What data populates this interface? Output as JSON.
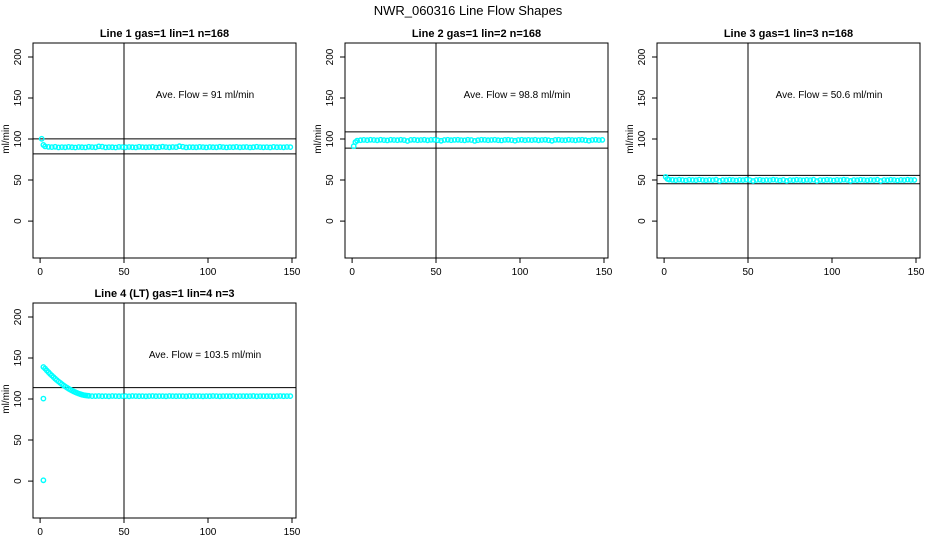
{
  "figure": {
    "title": "NWR_060316  Line Flow Shapes",
    "background_color": "#ffffff",
    "point_color": "#00ffff",
    "axis_color": "#000000"
  },
  "chart_data": [
    {
      "type": "scatter",
      "title": "Line 1 gas=1 lin=1 n=168",
      "annotation": "Ave. Flow =  91  ml/min",
      "ave_flow_ml_min": 91,
      "ylabel": "ml/min",
      "xlabel": "",
      "x_ticks": [
        0,
        50,
        100,
        150
      ],
      "y_ticks": [
        0,
        50,
        100,
        150,
        200
      ],
      "xlim": [
        -4.2,
        152.4
      ],
      "ylim": [
        -45,
        217
      ],
      "grid": false,
      "vline_x": 50,
      "hlines": [
        100.1,
        81.9
      ],
      "points": [
        [
          1,
          100.2
        ],
        [
          2,
          92.8
        ],
        [
          3,
          91
        ],
        [
          5,
          90.4
        ],
        [
          7,
          90.1
        ],
        [
          9,
          90.5
        ],
        [
          11,
          89.8
        ],
        [
          13,
          90.2
        ],
        [
          15,
          89.9
        ],
        [
          17,
          90.4
        ],
        [
          19,
          90
        ],
        [
          21,
          89.7
        ],
        [
          23,
          90.3
        ],
        [
          25,
          90
        ],
        [
          27,
          89.8
        ],
        [
          29,
          90.5
        ],
        [
          31,
          90.1
        ],
        [
          33,
          89.9
        ],
        [
          35,
          91
        ],
        [
          37,
          90.6
        ],
        [
          39,
          89.8
        ],
        [
          41,
          90.2
        ],
        [
          43,
          90
        ],
        [
          45,
          89.7
        ],
        [
          47,
          90.4
        ],
        [
          49,
          90.1
        ],
        [
          51,
          89.9
        ],
        [
          53,
          90.3
        ],
        [
          55,
          90
        ],
        [
          57,
          89.8
        ],
        [
          59,
          90.5
        ],
        [
          61,
          90.2
        ],
        [
          63,
          89.9
        ],
        [
          65,
          90.1
        ],
        [
          67,
          90.4
        ],
        [
          69,
          89.8
        ],
        [
          71,
          90
        ],
        [
          73,
          90.6
        ],
        [
          75,
          90.2
        ],
        [
          77,
          89.9
        ],
        [
          79,
          90.3
        ],
        [
          81,
          90
        ],
        [
          83,
          91.2
        ],
        [
          85,
          90.5
        ],
        [
          87,
          89.8
        ],
        [
          89,
          90.2
        ],
        [
          91,
          90
        ],
        [
          93,
          89.9
        ],
        [
          95,
          90.4
        ],
        [
          97,
          90.1
        ],
        [
          99,
          89.8
        ],
        [
          101,
          90.3
        ],
        [
          103,
          90
        ],
        [
          105,
          89.9
        ],
        [
          107,
          90.5
        ],
        [
          109,
          90.1
        ],
        [
          111,
          89.8
        ],
        [
          113,
          90.2
        ],
        [
          115,
          90
        ],
        [
          117,
          90.4
        ],
        [
          119,
          89.9
        ],
        [
          121,
          90.1
        ],
        [
          123,
          90.3
        ],
        [
          125,
          89.8
        ],
        [
          127,
          90
        ],
        [
          129,
          90.5
        ],
        [
          131,
          90.2
        ],
        [
          133,
          89.9
        ],
        [
          135,
          90.1
        ],
        [
          137,
          89.8
        ],
        [
          139,
          90.4
        ],
        [
          141,
          90
        ],
        [
          143,
          90.2
        ],
        [
          145,
          89.9
        ],
        [
          147,
          90.3
        ],
        [
          149,
          90.1
        ]
      ]
    },
    {
      "type": "scatter",
      "title": "Line 2 gas=1 lin=2 n=168",
      "annotation": "Ave. Flow =  98.8  ml/min",
      "ave_flow_ml_min": 98.8,
      "ylabel": "ml/min",
      "xlabel": "",
      "x_ticks": [
        0,
        50,
        100,
        150
      ],
      "y_ticks": [
        0,
        50,
        100,
        150,
        200
      ],
      "xlim": [
        -4.2,
        152.4
      ],
      "ylim": [
        -45,
        217
      ],
      "grid": false,
      "vline_x": 50,
      "hlines": [
        108.7,
        88.9
      ],
      "points": [
        [
          1,
          91.2
        ],
        [
          2,
          96.2
        ],
        [
          3,
          97.9
        ],
        [
          5,
          98.6
        ],
        [
          7,
          98.9
        ],
        [
          9,
          98.5
        ],
        [
          11,
          99.1
        ],
        [
          13,
          98.8
        ],
        [
          15,
          98.4
        ],
        [
          17,
          99
        ],
        [
          19,
          98.7
        ],
        [
          21,
          98.3
        ],
        [
          23,
          99.1
        ],
        [
          25,
          98.8
        ],
        [
          27,
          98.5
        ],
        [
          29,
          99
        ],
        [
          31,
          98.7
        ],
        [
          33,
          97.6
        ],
        [
          35,
          98.9
        ],
        [
          37,
          99.1
        ],
        [
          39,
          98.6
        ],
        [
          41,
          98.8
        ],
        [
          43,
          99
        ],
        [
          45,
          98.4
        ],
        [
          47,
          98.9
        ],
        [
          49,
          99.1
        ],
        [
          51,
          98.6
        ],
        [
          53,
          97.8
        ],
        [
          55,
          98.8
        ],
        [
          57,
          99
        ],
        [
          59,
          98.5
        ],
        [
          61,
          98.9
        ],
        [
          63,
          99.1
        ],
        [
          65,
          98.7
        ],
        [
          67,
          98.4
        ],
        [
          69,
          99
        ],
        [
          71,
          98.8
        ],
        [
          73,
          97.7
        ],
        [
          75,
          98.6
        ],
        [
          77,
          99.1
        ],
        [
          79,
          98.9
        ],
        [
          81,
          98.5
        ],
        [
          83,
          98.8
        ],
        [
          85,
          99
        ],
        [
          87,
          98.6
        ],
        [
          89,
          98.3
        ],
        [
          91,
          98.9
        ],
        [
          93,
          99.1
        ],
        [
          95,
          98.7
        ],
        [
          97,
          97.9
        ],
        [
          99,
          98.8
        ],
        [
          101,
          99
        ],
        [
          103,
          98.5
        ],
        [
          105,
          98.9
        ],
        [
          107,
          98.7
        ],
        [
          109,
          99.1
        ],
        [
          111,
          98.4
        ],
        [
          113,
          98.8
        ],
        [
          115,
          99
        ],
        [
          117,
          98.6
        ],
        [
          119,
          97.8
        ],
        [
          121,
          98.9
        ],
        [
          123,
          99.1
        ],
        [
          125,
          98.7
        ],
        [
          127,
          98.5
        ],
        [
          129,
          99
        ],
        [
          131,
          98.8
        ],
        [
          133,
          98.4
        ],
        [
          135,
          98.9
        ],
        [
          137,
          99.1
        ],
        [
          139,
          98.6
        ],
        [
          141,
          97.9
        ],
        [
          143,
          98.8
        ],
        [
          145,
          99
        ],
        [
          147,
          98.7
        ],
        [
          149,
          98.9
        ]
      ]
    },
    {
      "type": "scatter",
      "title": "Line 3 gas=1 lin=3 n=168",
      "annotation": "Ave. Flow =  50.6  ml/min",
      "ave_flow_ml_min": 50.6,
      "ylabel": "ml/min",
      "xlabel": "",
      "x_ticks": [
        0,
        50,
        100,
        150
      ],
      "y_ticks": [
        0,
        50,
        100,
        150,
        200
      ],
      "xlim": [
        -4.2,
        152.4
      ],
      "ylim": [
        -45,
        217
      ],
      "grid": false,
      "vline_x": 50,
      "hlines": [
        55.7,
        45.5
      ],
      "points": [
        [
          1,
          53.8
        ],
        [
          2,
          51.3
        ],
        [
          3,
          50.5
        ],
        [
          5,
          50.2
        ],
        [
          7,
          49.8
        ],
        [
          9,
          50.4
        ],
        [
          11,
          50
        ],
        [
          13,
          49.6
        ],
        [
          15,
          50.3
        ],
        [
          17,
          50.1
        ],
        [
          19,
          49.8
        ],
        [
          21,
          50.5
        ],
        [
          23,
          50
        ],
        [
          25,
          49.7
        ],
        [
          27,
          50.2
        ],
        [
          29,
          49.9
        ],
        [
          31,
          50.4
        ],
        [
          33,
          48.9
        ],
        [
          35,
          50.1
        ],
        [
          37,
          49.8
        ],
        [
          39,
          50.3
        ],
        [
          41,
          50
        ],
        [
          43,
          49.6
        ],
        [
          45,
          50.2
        ],
        [
          47,
          49.9
        ],
        [
          49,
          50.4
        ],
        [
          51,
          50.1
        ],
        [
          53,
          48.8
        ],
        [
          55,
          50
        ],
        [
          57,
          50.3
        ],
        [
          59,
          49.7
        ],
        [
          61,
          50.1
        ],
        [
          63,
          49.9
        ],
        [
          65,
          50.4
        ],
        [
          67,
          50
        ],
        [
          69,
          49.6
        ],
        [
          71,
          50.2
        ],
        [
          73,
          48.9
        ],
        [
          75,
          50.1
        ],
        [
          77,
          49.8
        ],
        [
          79,
          50.3
        ],
        [
          81,
          50
        ],
        [
          83,
          49.7
        ],
        [
          85,
          50.2
        ],
        [
          87,
          49.9
        ],
        [
          89,
          50.4
        ],
        [
          91,
          48.8
        ],
        [
          93,
          50.1
        ],
        [
          95,
          49.8
        ],
        [
          97,
          50.3
        ],
        [
          99,
          50
        ],
        [
          101,
          49.6
        ],
        [
          103,
          50.2
        ],
        [
          105,
          49.9
        ],
        [
          107,
          50.4
        ],
        [
          109,
          50
        ],
        [
          111,
          48.9
        ],
        [
          113,
          50.1
        ],
        [
          115,
          49.8
        ],
        [
          117,
          50.3
        ],
        [
          119,
          50
        ],
        [
          121,
          49.7
        ],
        [
          123,
          50.2
        ],
        [
          125,
          49.9
        ],
        [
          127,
          50.4
        ],
        [
          129,
          48.8
        ],
        [
          131,
          50.1
        ],
        [
          133,
          49.8
        ],
        [
          135,
          50.3
        ],
        [
          137,
          50
        ],
        [
          139,
          49.6
        ],
        [
          141,
          50.2
        ],
        [
          143,
          49.9
        ],
        [
          145,
          50.4
        ],
        [
          147,
          50
        ],
        [
          149,
          50.1
        ]
      ]
    },
    {
      "type": "scatter",
      "title": "Line 4 (LT) gas=1 lin=4 n=3",
      "annotation": "Ave. Flow =  103.5  ml/min",
      "ave_flow_ml_min": 103.5,
      "ylabel": "ml/min",
      "xlabel": "",
      "x_ticks": [
        0,
        50,
        100,
        150
      ],
      "y_ticks": [
        0,
        50,
        100,
        150,
        200
      ],
      "xlim": [
        -4.2,
        152.4
      ],
      "ylim": [
        -45,
        217
      ],
      "grid": false,
      "vline_x": 50,
      "hlines": [
        113.9
      ],
      "points": [
        [
          2,
          100.5
        ],
        [
          2,
          1
        ],
        [
          2,
          139
        ],
        [
          3,
          137
        ],
        [
          4,
          134.8
        ],
        [
          5,
          132.7
        ],
        [
          6,
          130.6
        ],
        [
          7,
          128.6
        ],
        [
          8,
          126.7
        ],
        [
          9,
          124.8
        ],
        [
          10,
          123
        ],
        [
          11,
          121.3
        ],
        [
          12,
          119.7
        ],
        [
          13,
          118.1
        ],
        [
          14,
          116.6
        ],
        [
          15,
          115.2
        ],
        [
          16,
          113.9
        ],
        [
          17,
          112.6
        ],
        [
          18,
          111.4
        ],
        [
          19,
          110.3
        ],
        [
          20,
          109.3
        ],
        [
          21,
          108.3
        ],
        [
          22,
          107.4
        ],
        [
          23,
          106.6
        ],
        [
          24,
          105.9
        ],
        [
          25,
          105.2
        ],
        [
          26,
          104.8
        ],
        [
          27,
          104.4
        ],
        [
          28,
          104.1
        ],
        [
          29,
          103.9
        ],
        [
          31,
          103.6
        ],
        [
          33,
          103.5
        ],
        [
          35,
          103.7
        ],
        [
          37,
          103.4
        ],
        [
          39,
          103.6
        ],
        [
          41,
          103.3
        ],
        [
          43,
          103.7
        ],
        [
          45,
          103.5
        ],
        [
          47,
          103.4
        ],
        [
          49,
          103.6
        ],
        [
          51,
          103.5
        ],
        [
          53,
          103.3
        ],
        [
          55,
          103.7
        ],
        [
          57,
          103.5
        ],
        [
          59,
          103.4
        ],
        [
          61,
          103.6
        ],
        [
          63,
          103.3
        ],
        [
          65,
          103.5
        ],
        [
          67,
          103.7
        ],
        [
          69,
          103.4
        ],
        [
          71,
          103.6
        ],
        [
          73,
          103.5
        ],
        [
          75,
          103.3
        ],
        [
          77,
          103.7
        ],
        [
          79,
          103.5
        ],
        [
          81,
          103.4
        ],
        [
          83,
          103.6
        ],
        [
          85,
          103.5
        ],
        [
          87,
          103.3
        ],
        [
          89,
          103.7
        ],
        [
          91,
          103.4
        ],
        [
          93,
          103.6
        ],
        [
          95,
          103.5
        ],
        [
          97,
          103.3
        ],
        [
          99,
          103.6
        ],
        [
          101,
          103.4
        ],
        [
          103,
          103.7
        ],
        [
          105,
          103.5
        ],
        [
          107,
          103.3
        ],
        [
          109,
          103.6
        ],
        [
          111,
          103.5
        ],
        [
          113,
          103.4
        ],
        [
          115,
          103.7
        ],
        [
          117,
          103.3
        ],
        [
          119,
          103.5
        ],
        [
          121,
          103.6
        ],
        [
          123,
          103.4
        ],
        [
          125,
          103.5
        ],
        [
          127,
          103.7
        ],
        [
          129,
          103.3
        ],
        [
          131,
          103.6
        ],
        [
          133,
          103.5
        ],
        [
          135,
          103.4
        ],
        [
          137,
          103.6
        ],
        [
          139,
          103.3
        ],
        [
          141,
          103.5
        ],
        [
          143,
          103.7
        ],
        [
          145,
          103.4
        ],
        [
          147,
          103.6
        ],
        [
          149,
          103.5
        ]
      ]
    }
  ]
}
